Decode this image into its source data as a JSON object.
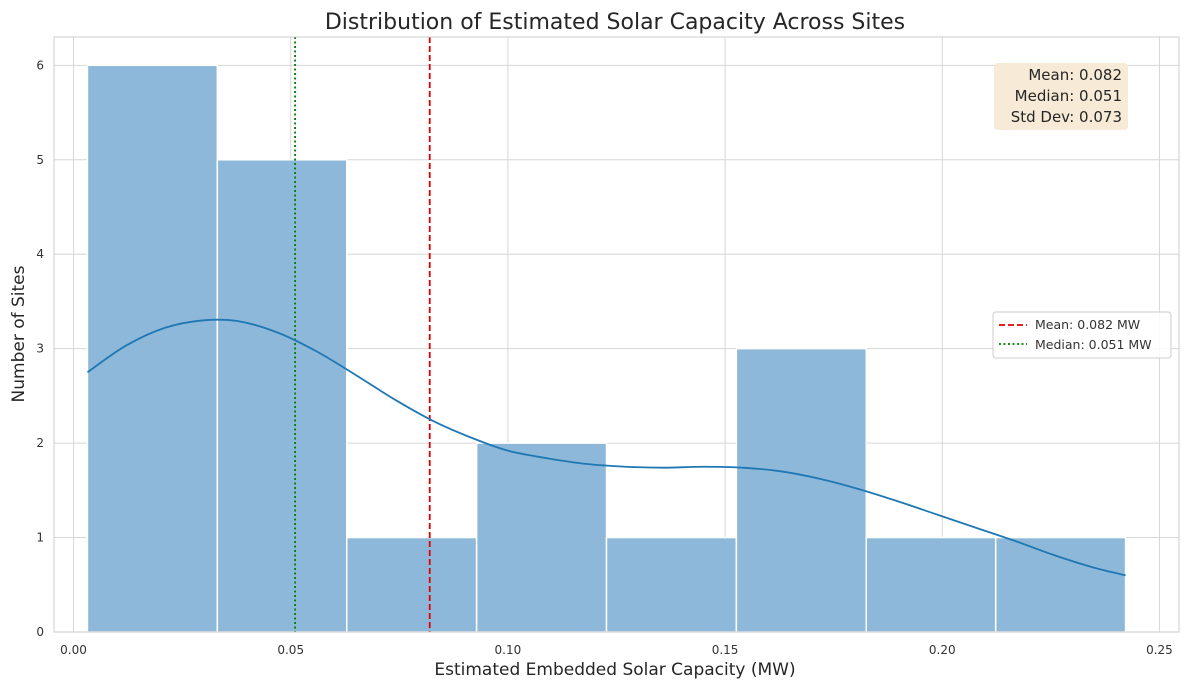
{
  "chart_data": {
    "type": "bar",
    "title": "Distribution of Estimated Solar Capacity Across Sites",
    "xlabel": "Estimated Embedded Solar Capacity (MW)",
    "ylabel": "Number of Sites",
    "xlim": [
      -0.0045,
      0.2545
    ],
    "ylim": [
      0,
      6.3
    ],
    "xticks": [
      0.0,
      0.05,
      0.1,
      0.15,
      0.2,
      0.25
    ],
    "xtick_labels": [
      "0.00",
      "0.05",
      "0.10",
      "0.15",
      "0.20",
      "0.25"
    ],
    "yticks": [
      0,
      1,
      2,
      3,
      4,
      5,
      6
    ],
    "ytick_labels": [
      "0",
      "1",
      "2",
      "3",
      "4",
      "5",
      "6"
    ],
    "grid": true,
    "bins": [
      {
        "start": 0.0032,
        "end": 0.0331,
        "count": 6
      },
      {
        "start": 0.0331,
        "end": 0.0629,
        "count": 5
      },
      {
        "start": 0.0629,
        "end": 0.0928,
        "count": 1
      },
      {
        "start": 0.0928,
        "end": 0.1227,
        "count": 2
      },
      {
        "start": 0.1227,
        "end": 0.1526,
        "count": 1
      },
      {
        "start": 0.1526,
        "end": 0.1825,
        "count": 3
      },
      {
        "start": 0.1825,
        "end": 0.2123,
        "count": 1
      },
      {
        "start": 0.2123,
        "end": 0.2422,
        "count": 1
      }
    ],
    "kde": {
      "x": [
        0.0032,
        0.012,
        0.021,
        0.03,
        0.038,
        0.047,
        0.056,
        0.065,
        0.074,
        0.083,
        0.092,
        0.1,
        0.109,
        0.118,
        0.127,
        0.136,
        0.145,
        0.154,
        0.163,
        0.172,
        0.181,
        0.19,
        0.199,
        0.208,
        0.217,
        0.226,
        0.235,
        0.2422
      ],
      "y": [
        2.75,
        3.03,
        3.22,
        3.3,
        3.29,
        3.17,
        2.97,
        2.72,
        2.46,
        2.23,
        2.05,
        1.92,
        1.84,
        1.78,
        1.75,
        1.74,
        1.75,
        1.74,
        1.7,
        1.62,
        1.51,
        1.38,
        1.24,
        1.1,
        0.96,
        0.81,
        0.68,
        0.6
      ]
    },
    "mean": 0.082,
    "median": 0.051,
    "stats_box": [
      "Mean: 0.082",
      "Median: 0.051",
      "Std Dev: 0.073"
    ],
    "legend": {
      "placement": "center-right",
      "entries": [
        {
          "label": "Mean: 0.082 MW",
          "color": "#e00000",
          "style": "dashed"
        },
        {
          "label": "Median: 0.051 MW",
          "color": "#008000",
          "style": "dotted"
        }
      ]
    },
    "colors": {
      "bar": "#8db8d9",
      "kde": "#1f77b4",
      "mean": "#e00000",
      "median": "#008000",
      "stats_box": "#f7ead6"
    }
  }
}
